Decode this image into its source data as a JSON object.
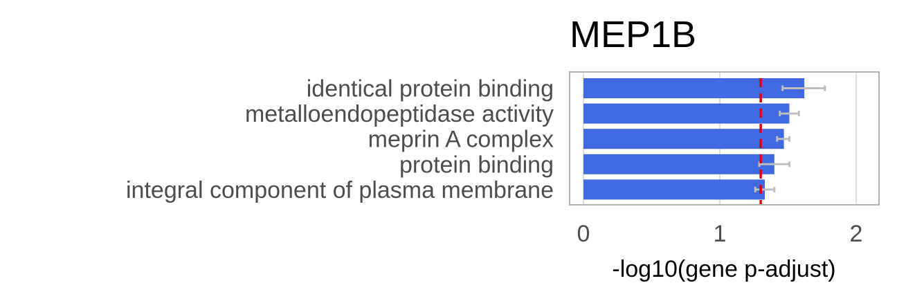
{
  "chart_data": {
    "type": "bar",
    "orientation": "horizontal",
    "title": "MEP1B",
    "xlabel": "-log10(gene p-adjust)",
    "ylabel": "",
    "categories": [
      "identical protein binding",
      "metalloendopeptidase activity",
      "meprin A complex",
      "protein binding",
      "integral component of plasma membrane"
    ],
    "values": [
      1.62,
      1.51,
      1.47,
      1.4,
      1.33
    ],
    "error_bars": [
      {
        "low": 1.46,
        "high": 1.77
      },
      {
        "low": 1.44,
        "high": 1.58
      },
      {
        "low": 1.42,
        "high": 1.51
      },
      {
        "low": 1.29,
        "high": 1.51
      },
      {
        "low": 1.26,
        "high": 1.4
      }
    ],
    "threshold": 1.3,
    "xlim": [
      0,
      2.15
    ],
    "xticks": [
      0,
      1,
      2
    ],
    "xtick_labels": [
      "0",
      "1",
      "2"
    ],
    "grid": true,
    "colors": {
      "bar": "#4169e1",
      "error_bar": "#bebebe",
      "threshold": "#dd0000",
      "panel_border": "#b3b3b3",
      "grid": "#dedede"
    }
  }
}
